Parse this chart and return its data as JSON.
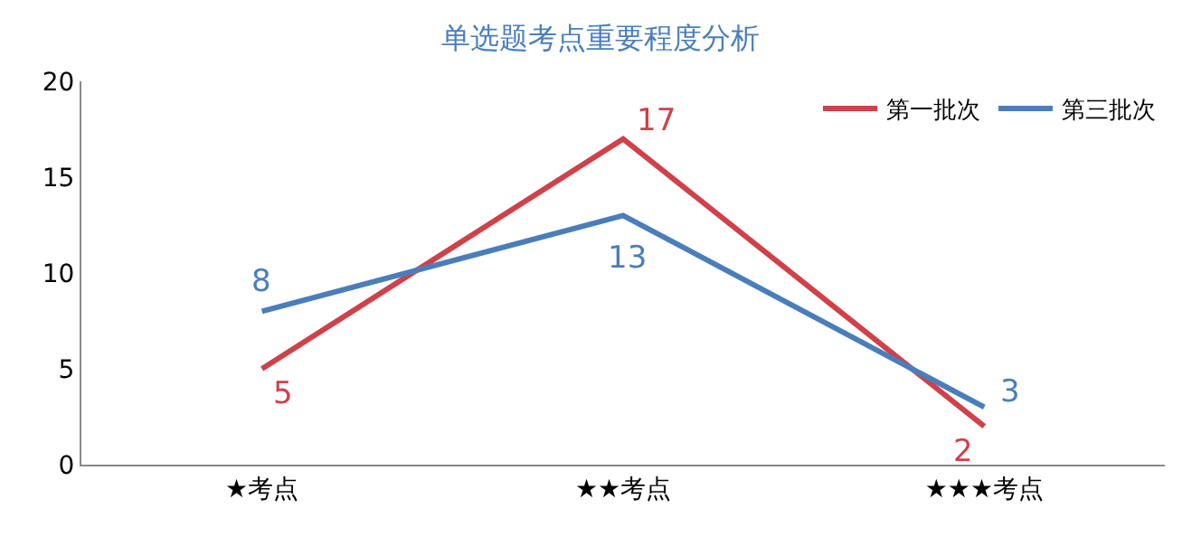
{
  "chart_data": {
    "type": "line",
    "title": "单选题考点重要程度分析",
    "categories": [
      "★考点",
      "★★考点",
      "★★★考点"
    ],
    "series": [
      {
        "name": "第一批次",
        "color": "#d0414a",
        "values": [
          5,
          17,
          2
        ]
      },
      {
        "name": "第三批次",
        "color": "#4a7ebb",
        "values": [
          8,
          13,
          3
        ]
      }
    ],
    "ylim": [
      0,
      20
    ],
    "yticks": [
      0,
      5,
      10,
      15,
      20
    ],
    "legend": "top right",
    "marker": "none",
    "line_style": "solid",
    "data_labels": true
  }
}
